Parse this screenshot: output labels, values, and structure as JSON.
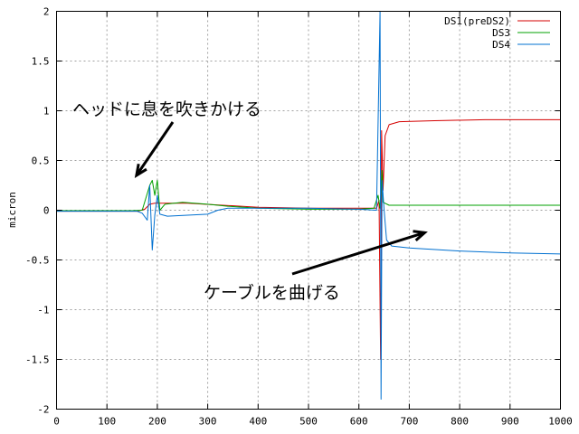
{
  "chart_data": {
    "type": "line",
    "title": "",
    "xlabel": "",
    "ylabel": "micron",
    "xlim": [
      0,
      1000
    ],
    "ylim": [
      -2,
      2
    ],
    "grid": true,
    "legend_position": "top-right",
    "x_ticks": [
      "0",
      "100",
      "200",
      "300",
      "400",
      "500",
      "600",
      "700",
      "800",
      "900",
      "1000"
    ],
    "y_ticks": [
      "-2",
      "-1.5",
      "-1",
      "-0.5",
      "0",
      "0.5",
      "1",
      "1.5",
      "2"
    ],
    "series": [
      {
        "name": "DS1(preDS2)",
        "color": "#d40000",
        "points": [
          [
            0,
            -0.01
          ],
          [
            100,
            -0.01
          ],
          [
            160,
            -0.01
          ],
          [
            175,
            0.01
          ],
          [
            185,
            0.06
          ],
          [
            195,
            0.07
          ],
          [
            260,
            0.07
          ],
          [
            330,
            0.05
          ],
          [
            400,
            0.03
          ],
          [
            500,
            0.02
          ],
          [
            600,
            0.02
          ],
          [
            635,
            0.02
          ],
          [
            640,
            0.1
          ],
          [
            643,
            -1.5
          ],
          [
            645,
            0.8
          ],
          [
            648,
            0.2
          ],
          [
            652,
            0.75
          ],
          [
            660,
            0.86
          ],
          [
            680,
            0.89
          ],
          [
            750,
            0.9
          ],
          [
            850,
            0.91
          ],
          [
            1000,
            0.91
          ]
        ]
      },
      {
        "name": "DS3",
        "color": "#00a000",
        "points": [
          [
            0,
            -0.005
          ],
          [
            150,
            -0.005
          ],
          [
            170,
            0.0
          ],
          [
            185,
            0.25
          ],
          [
            190,
            0.3
          ],
          [
            195,
            0.15
          ],
          [
            200,
            0.3
          ],
          [
            205,
            0.0
          ],
          [
            215,
            0.06
          ],
          [
            250,
            0.08
          ],
          [
            300,
            0.06
          ],
          [
            340,
            0.04
          ],
          [
            400,
            0.02
          ],
          [
            500,
            0.01
          ],
          [
            600,
            0.01
          ],
          [
            630,
            0.02
          ],
          [
            638,
            0.15
          ],
          [
            642,
            0.02
          ],
          [
            646,
            0.4
          ],
          [
            648,
            0.08
          ],
          [
            660,
            0.05
          ],
          [
            700,
            0.05
          ],
          [
            800,
            0.05
          ],
          [
            900,
            0.05
          ],
          [
            1000,
            0.05
          ]
        ]
      },
      {
        "name": "DS4",
        "color": "#0070d0",
        "points": [
          [
            0,
            -0.01
          ],
          [
            100,
            -0.01
          ],
          [
            160,
            -0.01
          ],
          [
            170,
            -0.03
          ],
          [
            180,
            -0.1
          ],
          [
            185,
            0.25
          ],
          [
            190,
            -0.4
          ],
          [
            195,
            -0.05
          ],
          [
            200,
            0.15
          ],
          [
            205,
            -0.04
          ],
          [
            220,
            -0.06
          ],
          [
            300,
            -0.04
          ],
          [
            320,
            0.0
          ],
          [
            340,
            0.02
          ],
          [
            400,
            0.02
          ],
          [
            500,
            0.02
          ],
          [
            600,
            0.01
          ],
          [
            635,
            0.0
          ],
          [
            642,
            2.0
          ],
          [
            644,
            -1.9
          ],
          [
            646,
            0.3
          ],
          [
            650,
            0.0
          ],
          [
            655,
            -0.3
          ],
          [
            665,
            -0.36
          ],
          [
            700,
            -0.38
          ],
          [
            800,
            -0.41
          ],
          [
            900,
            -0.43
          ],
          [
            1000,
            -0.44
          ]
        ]
      }
    ],
    "annotations": [
      {
        "text": "ヘッドに息を吹きかける",
        "arrow_target": [
          200,
          0.35
        ]
      },
      {
        "text": "ケーブルを曲げる",
        "arrow_target": [
          630,
          -0.08
        ]
      }
    ]
  }
}
